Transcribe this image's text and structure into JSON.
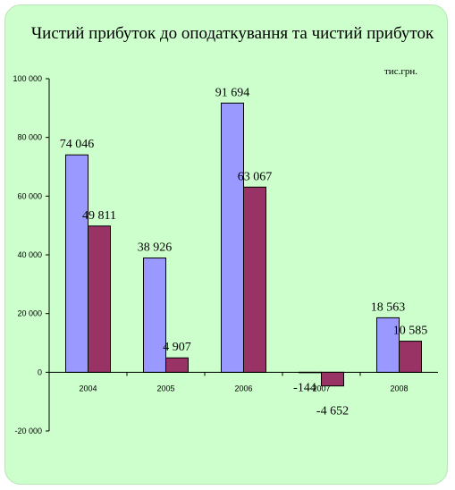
{
  "chart_data": {
    "type": "bar",
    "title": "Чистий прибуток до оподаткування та чистий прибуток",
    "unit": "тис.грн.",
    "categories": [
      "2004",
      "2005",
      "2006",
      "2007",
      "2008"
    ],
    "series": [
      {
        "values": [
          74046,
          38926,
          91694,
          -144,
          18563
        ],
        "labels": [
          "74 046",
          "38 926",
          "91 694",
          "-144",
          "18 563"
        ],
        "color": "#9999ff"
      },
      {
        "values": [
          49811,
          4907,
          63067,
          -4652,
          10585
        ],
        "labels": [
          "49 811",
          "4 907",
          "63 067",
          "-4 652",
          "10 585"
        ],
        "color": "#993366"
      }
    ],
    "yticks": [
      {
        "value": 100000,
        "label": "100 000"
      },
      {
        "value": 80000,
        "label": "80 000"
      },
      {
        "value": 60000,
        "label": "60 000"
      },
      {
        "value": 40000,
        "label": "40 000"
      },
      {
        "value": 20000,
        "label": "20 000"
      },
      {
        "value": 0,
        "label": "0"
      },
      {
        "value": -20000,
        "label": "-20 000"
      }
    ],
    "ylim": [
      -20000,
      100000
    ],
    "grid": false,
    "legend": "none"
  }
}
